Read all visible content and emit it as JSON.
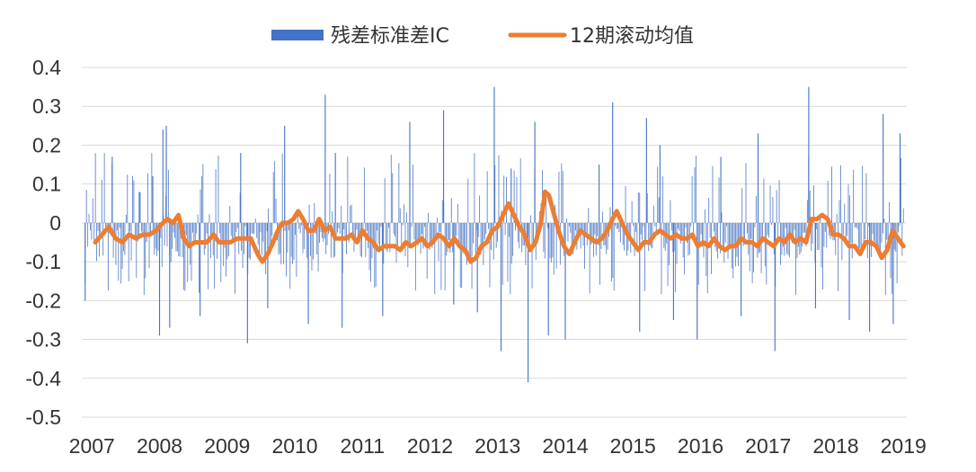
{
  "chart_data": {
    "type": "bar",
    "title": "",
    "xlabel": "",
    "ylabel": "",
    "ylim": [
      -0.5,
      0.4
    ],
    "yticks": [
      0.4,
      0.3,
      0.2,
      0.1,
      0,
      -0.1,
      -0.2,
      -0.3,
      -0.4,
      -0.5
    ],
    "ytick_labels": [
      "0.4",
      "0.3",
      "0.2",
      "0.1",
      "0",
      "-0.1",
      "-0.2",
      "-0.3",
      "-0.4",
      "-0.5"
    ],
    "xlim": [
      2006.85,
      2019.05
    ],
    "year_labels": [
      "2007",
      "2008",
      "2009",
      "2010",
      "2011",
      "2012",
      "2013",
      "2014",
      "2015",
      "2016",
      "2017",
      "2018",
      "2019"
    ],
    "grid": "horizontal",
    "legend_position": "top",
    "series": [
      {
        "name": "残差标准差IC",
        "type": "bar",
        "color": "#4472C4",
        "spikes": [
          {
            "t": 2006.9,
            "v": -0.2
          },
          {
            "t": 2007.3,
            "v": 0.17
          },
          {
            "t": 2007.7,
            "v": 0.08
          },
          {
            "t": 2007.9,
            "v": 0.12
          },
          {
            "t": 2008.0,
            "v": -0.29
          },
          {
            "t": 2008.05,
            "v": 0.24
          },
          {
            "t": 2008.1,
            "v": 0.25
          },
          {
            "t": 2008.15,
            "v": -0.27
          },
          {
            "t": 2008.6,
            "v": -0.24
          },
          {
            "t": 2009.2,
            "v": 0.18
          },
          {
            "t": 2009.3,
            "v": -0.31
          },
          {
            "t": 2009.6,
            "v": -0.22
          },
          {
            "t": 2009.85,
            "v": 0.25
          },
          {
            "t": 2010.2,
            "v": -0.26
          },
          {
            "t": 2010.45,
            "v": 0.33
          },
          {
            "t": 2010.6,
            "v": 0.18
          },
          {
            "t": 2010.7,
            "v": -0.27
          },
          {
            "t": 2011.3,
            "v": -0.24
          },
          {
            "t": 2011.7,
            "v": 0.26
          },
          {
            "t": 2012.2,
            "v": 0.29
          },
          {
            "t": 2012.35,
            "v": -0.21
          },
          {
            "t": 2012.7,
            "v": -0.23
          },
          {
            "t": 2012.95,
            "v": 0.35
          },
          {
            "t": 2013.05,
            "v": -0.33
          },
          {
            "t": 2013.2,
            "v": 0.14
          },
          {
            "t": 2013.45,
            "v": -0.41
          },
          {
            "t": 2013.55,
            "v": 0.26
          },
          {
            "t": 2013.75,
            "v": -0.29
          },
          {
            "t": 2014.0,
            "v": -0.3
          },
          {
            "t": 2014.5,
            "v": 0.15
          },
          {
            "t": 2014.7,
            "v": 0.31
          },
          {
            "t": 2015.1,
            "v": -0.28
          },
          {
            "t": 2015.2,
            "v": 0.27
          },
          {
            "t": 2015.4,
            "v": 0.2
          },
          {
            "t": 2015.6,
            "v": -0.25
          },
          {
            "t": 2015.95,
            "v": -0.3
          },
          {
            "t": 2016.3,
            "v": 0.17
          },
          {
            "t": 2016.6,
            "v": -0.24
          },
          {
            "t": 2016.85,
            "v": 0.23
          },
          {
            "t": 2017.1,
            "v": -0.33
          },
          {
            "t": 2017.6,
            "v": 0.35
          },
          {
            "t": 2017.7,
            "v": -0.22
          },
          {
            "t": 2018.2,
            "v": -0.25
          },
          {
            "t": 2018.5,
            "v": -0.28
          },
          {
            "t": 2018.7,
            "v": 0.28
          },
          {
            "t": 2018.85,
            "v": -0.26
          },
          {
            "t": 2018.95,
            "v": 0.23
          }
        ]
      },
      {
        "name": "12期滚动均值",
        "type": "line",
        "color": "#ED7D31",
        "points": [
          [
            2007.05,
            -0.05
          ],
          [
            2007.15,
            -0.03
          ],
          [
            2007.25,
            -0.01
          ],
          [
            2007.35,
            -0.04
          ],
          [
            2007.45,
            -0.05
          ],
          [
            2007.55,
            -0.03
          ],
          [
            2007.65,
            -0.04
          ],
          [
            2007.75,
            -0.03
          ],
          [
            2007.85,
            -0.03
          ],
          [
            2007.95,
            -0.02
          ],
          [
            2008.05,
            0.0
          ],
          [
            2008.12,
            0.01
          ],
          [
            2008.2,
            0.0
          ],
          [
            2008.28,
            0.02
          ],
          [
            2008.36,
            -0.04
          ],
          [
            2008.44,
            -0.06
          ],
          [
            2008.52,
            -0.05
          ],
          [
            2008.6,
            -0.05
          ],
          [
            2008.7,
            -0.05
          ],
          [
            2008.8,
            -0.03
          ],
          [
            2008.88,
            -0.05
          ],
          [
            2008.96,
            -0.05
          ],
          [
            2009.05,
            -0.05
          ],
          [
            2009.15,
            -0.04
          ],
          [
            2009.25,
            -0.04
          ],
          [
            2009.35,
            -0.04
          ],
          [
            2009.45,
            -0.08
          ],
          [
            2009.52,
            -0.1
          ],
          [
            2009.6,
            -0.08
          ],
          [
            2009.68,
            -0.05
          ],
          [
            2009.75,
            -0.02
          ],
          [
            2009.82,
            0.0
          ],
          [
            2009.9,
            0.0
          ],
          [
            2009.98,
            0.01
          ],
          [
            2010.05,
            0.03
          ],
          [
            2010.12,
            0.01
          ],
          [
            2010.2,
            -0.02
          ],
          [
            2010.28,
            -0.02
          ],
          [
            2010.36,
            0.01
          ],
          [
            2010.44,
            -0.02
          ],
          [
            2010.52,
            -0.01
          ],
          [
            2010.6,
            -0.04
          ],
          [
            2010.68,
            -0.04
          ],
          [
            2010.76,
            -0.04
          ],
          [
            2010.84,
            -0.03
          ],
          [
            2010.92,
            -0.05
          ],
          [
            2011.0,
            -0.02
          ],
          [
            2011.08,
            -0.04
          ],
          [
            2011.16,
            -0.05
          ],
          [
            2011.24,
            -0.07
          ],
          [
            2011.32,
            -0.06
          ],
          [
            2011.4,
            -0.06
          ],
          [
            2011.48,
            -0.06
          ],
          [
            2011.56,
            -0.07
          ],
          [
            2011.64,
            -0.05
          ],
          [
            2011.72,
            -0.06
          ],
          [
            2011.8,
            -0.05
          ],
          [
            2011.88,
            -0.04
          ],
          [
            2011.96,
            -0.06
          ],
          [
            2012.04,
            -0.05
          ],
          [
            2012.12,
            -0.03
          ],
          [
            2012.2,
            -0.04
          ],
          [
            2012.28,
            -0.06
          ],
          [
            2012.36,
            -0.04
          ],
          [
            2012.44,
            -0.06
          ],
          [
            2012.52,
            -0.07
          ],
          [
            2012.6,
            -0.1
          ],
          [
            2012.68,
            -0.09
          ],
          [
            2012.76,
            -0.06
          ],
          [
            2012.84,
            -0.05
          ],
          [
            2012.92,
            -0.02
          ],
          [
            2013.0,
            -0.01
          ],
          [
            2013.08,
            0.02
          ],
          [
            2013.16,
            0.05
          ],
          [
            2013.24,
            0.02
          ],
          [
            2013.32,
            -0.01
          ],
          [
            2013.4,
            -0.03
          ],
          [
            2013.48,
            -0.07
          ],
          [
            2013.56,
            -0.05
          ],
          [
            2013.64,
            0.0
          ],
          [
            2013.7,
            0.08
          ],
          [
            2013.76,
            0.07
          ],
          [
            2013.82,
            0.03
          ],
          [
            2013.9,
            -0.02
          ],
          [
            2013.98,
            -0.06
          ],
          [
            2014.06,
            -0.08
          ],
          [
            2014.14,
            -0.05
          ],
          [
            2014.22,
            -0.02
          ],
          [
            2014.3,
            -0.03
          ],
          [
            2014.38,
            -0.04
          ],
          [
            2014.46,
            -0.05
          ],
          [
            2014.54,
            -0.04
          ],
          [
            2014.62,
            -0.02
          ],
          [
            2014.7,
            0.01
          ],
          [
            2014.76,
            0.03
          ],
          [
            2014.84,
            0.0
          ],
          [
            2014.92,
            -0.03
          ],
          [
            2015.0,
            -0.05
          ],
          [
            2015.08,
            -0.07
          ],
          [
            2015.16,
            -0.05
          ],
          [
            2015.24,
            -0.05
          ],
          [
            2015.32,
            -0.03
          ],
          [
            2015.4,
            -0.02
          ],
          [
            2015.48,
            -0.03
          ],
          [
            2015.56,
            -0.04
          ],
          [
            2015.64,
            -0.03
          ],
          [
            2015.72,
            -0.04
          ],
          [
            2015.8,
            -0.04
          ],
          [
            2015.88,
            -0.03
          ],
          [
            2015.96,
            -0.06
          ],
          [
            2016.04,
            -0.05
          ],
          [
            2016.12,
            -0.06
          ],
          [
            2016.2,
            -0.04
          ],
          [
            2016.28,
            -0.06
          ],
          [
            2016.36,
            -0.07
          ],
          [
            2016.44,
            -0.06
          ],
          [
            2016.52,
            -0.06
          ],
          [
            2016.6,
            -0.04
          ],
          [
            2016.68,
            -0.05
          ],
          [
            2016.76,
            -0.05
          ],
          [
            2016.84,
            -0.06
          ],
          [
            2016.92,
            -0.04
          ],
          [
            2017.0,
            -0.05
          ],
          [
            2017.08,
            -0.06
          ],
          [
            2017.16,
            -0.04
          ],
          [
            2017.24,
            -0.05
          ],
          [
            2017.32,
            -0.03
          ],
          [
            2017.4,
            -0.05
          ],
          [
            2017.48,
            -0.04
          ],
          [
            2017.56,
            -0.05
          ],
          [
            2017.64,
            0.01
          ],
          [
            2017.72,
            0.01
          ],
          [
            2017.8,
            0.02
          ],
          [
            2017.88,
            0.01
          ],
          [
            2017.96,
            -0.03
          ],
          [
            2018.04,
            -0.03
          ],
          [
            2018.12,
            -0.04
          ],
          [
            2018.2,
            -0.06
          ],
          [
            2018.28,
            -0.06
          ],
          [
            2018.36,
            -0.08
          ],
          [
            2018.44,
            -0.05
          ],
          [
            2018.52,
            -0.05
          ],
          [
            2018.6,
            -0.06
          ],
          [
            2018.68,
            -0.09
          ],
          [
            2018.76,
            -0.07
          ],
          [
            2018.84,
            -0.02
          ],
          [
            2018.92,
            -0.04
          ],
          [
            2019.0,
            -0.06
          ]
        ]
      }
    ]
  }
}
